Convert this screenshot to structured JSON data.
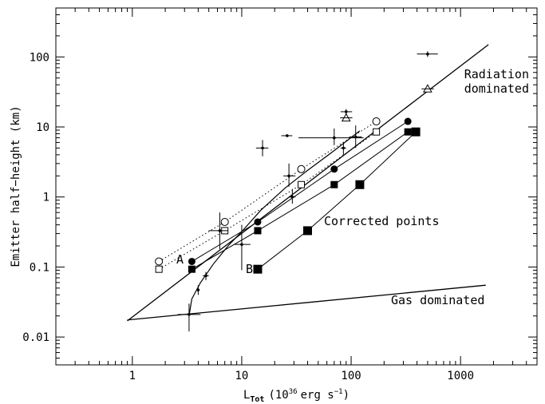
{
  "chart_data": {
    "type": "scatter",
    "xlabel": "L",
    "xlabel_sub": "Tot",
    "xlabel_rest": "(10",
    "xlabel_sup": "36",
    "xlabel_units": "erg s",
    "xlabel_units_sup": "−1",
    "xlabel_close": ")",
    "ylabel": "Emitter half−height (km)",
    "x_scale": "log",
    "y_scale": "log",
    "xlim": [
      0.2,
      5000
    ],
    "ylim": [
      0.004,
      500
    ],
    "x_ticks": [
      "1",
      "10",
      "100",
      "1000"
    ],
    "y_ticks": [
      "0.01",
      "0.1",
      "1",
      "10",
      "100"
    ],
    "annotations": {
      "radiation": [
        "Radiation",
        "dominated"
      ],
      "gas": "Gas dominated",
      "corrected": "Corrected points",
      "label_a": "A",
      "label_b": "B"
    },
    "lines": {
      "radiation_dominated": [
        [
          0.9,
          0.017
        ],
        [
          1800,
          150
        ]
      ],
      "gas_dominated": [
        [
          0.9,
          0.0175
        ],
        [
          1700,
          0.055
        ]
      ],
      "curve": [
        [
          3.3,
          0.02
        ],
        [
          3.5,
          0.035
        ],
        [
          4.2,
          0.06
        ],
        [
          5.5,
          0.11
        ],
        [
          7.5,
          0.2
        ],
        [
          10,
          0.32
        ],
        [
          15,
          0.65
        ],
        [
          25,
          1.35
        ],
        [
          40,
          2.4
        ],
        [
          70,
          4.6
        ],
        [
          120,
          8.8
        ]
      ]
    },
    "series": [
      {
        "name": "A",
        "marker": "filled-circle",
        "points": [
          [
            3.5,
            0.12
          ],
          [
            14,
            0.44
          ],
          [
            70,
            2.5
          ],
          [
            330,
            12
          ]
        ]
      },
      {
        "name": "A-corrected",
        "marker": "filled-square",
        "points": [
          [
            3.5,
            0.093
          ],
          [
            14,
            0.33
          ],
          [
            70,
            1.5
          ],
          [
            330,
            8.5
          ]
        ]
      },
      {
        "name": "B-corrected",
        "marker": "filled-square-large",
        "points": [
          [
            14,
            0.093
          ],
          [
            40,
            0.33
          ],
          [
            120,
            1.5
          ],
          [
            390,
            8.5
          ]
        ]
      },
      {
        "name": "open-circles",
        "marker": "open-circle",
        "points": [
          [
            1.75,
            0.12
          ],
          [
            7,
            0.44
          ],
          [
            35,
            2.5
          ],
          [
            170,
            12
          ]
        ]
      },
      {
        "name": "open-squares",
        "marker": "open-square",
        "points": [
          [
            1.75,
            0.093
          ],
          [
            7,
            0.33
          ],
          [
            35,
            1.5
          ],
          [
            170,
            8.5
          ]
        ]
      },
      {
        "name": "open-triangles",
        "marker": "open-triangle",
        "points": [
          [
            90,
            13.5
          ],
          [
            500,
            35
          ]
        ]
      },
      {
        "name": "measured-points",
        "marker": "dot-errorbar",
        "points": [
          {
            "x": 3.3,
            "y": 0.021,
            "xerr": [
              2.6,
              4.2
            ],
            "yerr": [
              0.012,
              0.03
            ]
          },
          {
            "x": 4.0,
            "y": 0.047,
            "xerr": [
              3.9,
              4.1
            ],
            "yerr": [
              0.04,
              0.055
            ]
          },
          {
            "x": 4.7,
            "y": 0.075,
            "xerr": [
              4.4,
              5.0
            ],
            "yerr": [
              0.065,
              0.085
            ]
          },
          {
            "x": 6.3,
            "y": 0.33,
            "xerr": [
              5.0,
              7.5
            ],
            "yerr": [
              0.18,
              0.6
            ]
          },
          {
            "x": 10,
            "y": 0.21,
            "xerr": [
              8.5,
              12
            ],
            "yerr": [
              0.09,
              0.4
            ]
          },
          {
            "x": 15.5,
            "y": 5.0,
            "xerr": [
              13.5,
              17.5
            ],
            "yerr": [
              3.8,
              6.5
            ]
          },
          {
            "x": 26,
            "y": 7.5,
            "xerr": [
              23,
              29
            ],
            "yerr": [
              7.2,
              7.8
            ]
          },
          {
            "x": 27,
            "y": 2.0,
            "xerr": [
              24,
              31
            ],
            "yerr": [
              1.4,
              3.0
            ]
          },
          {
            "x": 29,
            "y": 1.0,
            "xerr": [
              27,
              31
            ],
            "yerr": [
              0.8,
              1.3
            ]
          },
          {
            "x": 70,
            "y": 7.0,
            "xerr": [
              33,
              130
            ],
            "yerr": [
              5.5,
              9.5
            ]
          },
          {
            "x": 85,
            "y": 5.0,
            "xerr": [
              80,
              90
            ],
            "yerr": [
              4.0,
              6.0
            ]
          },
          {
            "x": 90,
            "y": 16.5,
            "xerr": [
              80,
              102
            ],
            "yerr": [
              15,
              18
            ]
          },
          {
            "x": 110,
            "y": 7.2,
            "xerr": [
              96,
              125
            ],
            "yerr": [
              5.0,
              10.5
            ]
          },
          {
            "x": 500,
            "y": 110,
            "xerr": [
              400,
              620
            ],
            "yerr": [
              100,
              120
            ]
          }
        ]
      }
    ]
  }
}
